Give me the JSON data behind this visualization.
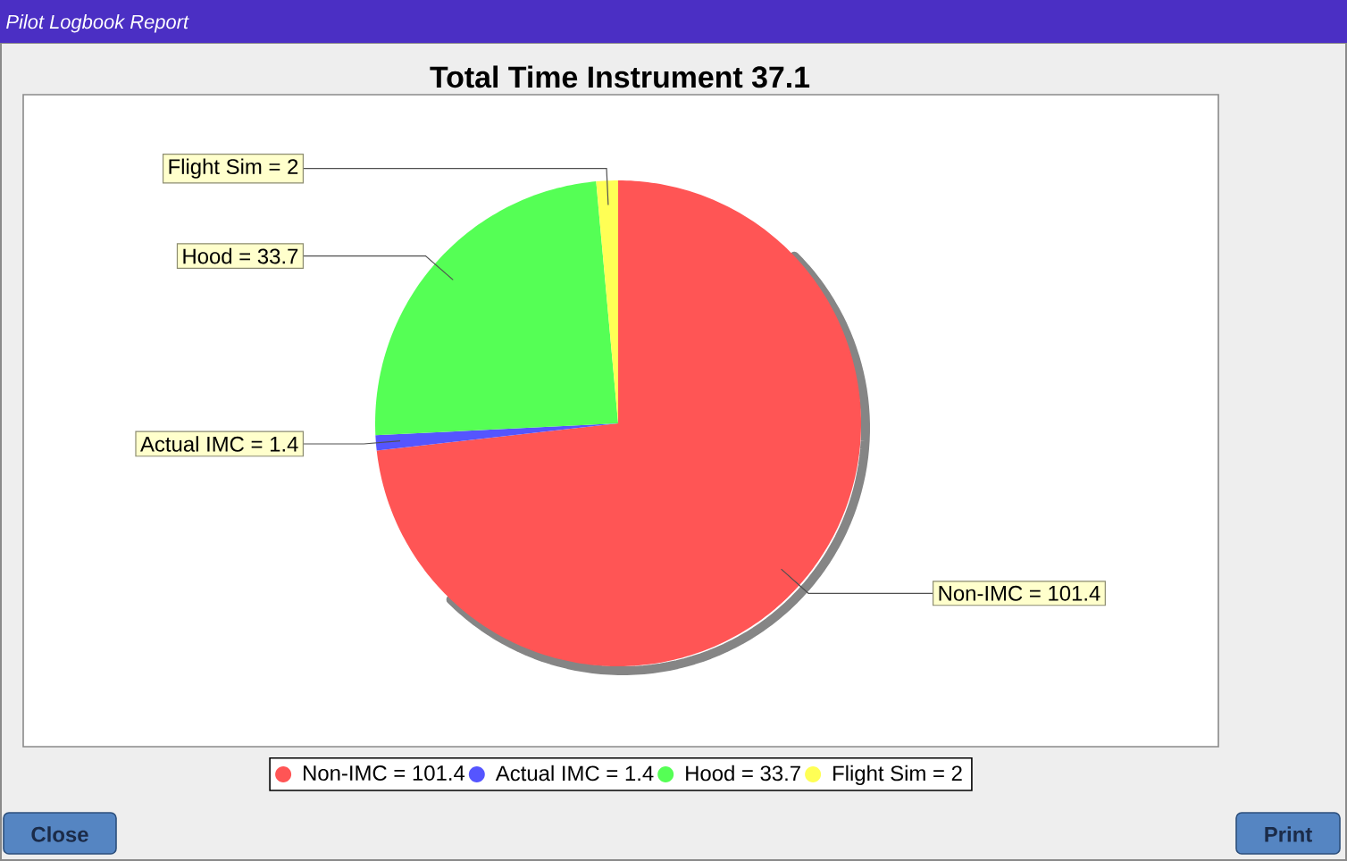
{
  "chart_data": {
    "type": "pie",
    "title": "Total Time Instrument 37.1",
    "categories": [
      "Non-IMC = 101.4",
      "Actual IMC = 1.4",
      "Hood = 33.7",
      "Flight Sim = 2"
    ],
    "values": [
      101.4,
      1.4,
      33.7,
      2
    ],
    "colors": [
      "#ff5555",
      "#5555ff",
      "#55ff55",
      "#ffff55"
    ],
    "legend": "bottom",
    "annotations": [
      "Pilot Logbook Report",
      "Close",
      "Print"
    ]
  }
}
